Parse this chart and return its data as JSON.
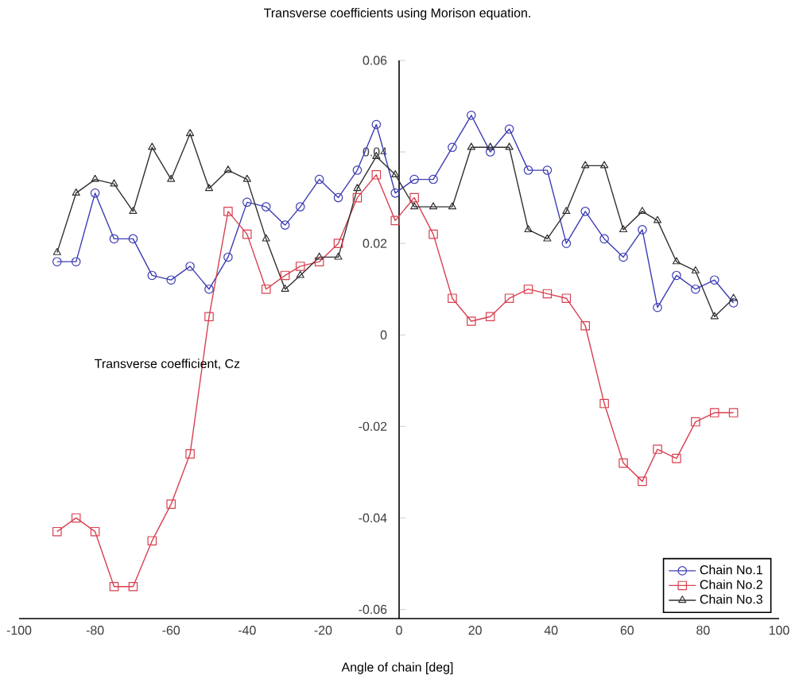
{
  "chart_data": {
    "type": "line",
    "title": "Transverse coefficients using Morison equation.",
    "xlabel": "Angle of chain [deg]",
    "ylabel": "Transverse coefficient, Cz",
    "x": [
      -90,
      -85,
      -80,
      -75,
      -70,
      -65,
      -60,
      -55,
      -50,
      -45,
      -40,
      -35,
      -30,
      -26,
      -21,
      -16,
      -11,
      -6,
      -1,
      4,
      9,
      14,
      19,
      24,
      29,
      34,
      39,
      44,
      49,
      54,
      59,
      64,
      68,
      73,
      78,
      83,
      88
    ],
    "series": [
      {
        "name": "Chain No.1",
        "color": "#3c3cb4",
        "marker": "circle",
        "values": [
          0.016,
          0.016,
          0.031,
          0.021,
          0.021,
          0.013,
          0.012,
          0.015,
          0.01,
          0.017,
          0.029,
          0.028,
          0.024,
          0.028,
          0.034,
          0.03,
          0.036,
          0.046,
          0.031,
          0.034,
          0.034,
          0.041,
          0.048,
          0.04,
          0.045,
          0.036,
          0.036,
          0.02,
          0.027,
          0.021,
          0.017,
          0.023,
          0.006,
          0.013,
          0.01,
          0.012,
          0.007
        ]
      },
      {
        "name": "Chain No.2",
        "color": "#d84050",
        "marker": "square",
        "values": [
          -0.043,
          -0.04,
          -0.043,
          -0.055,
          -0.055,
          -0.045,
          -0.037,
          -0.026,
          0.004,
          0.027,
          0.022,
          0.01,
          0.013,
          0.015,
          0.016,
          0.02,
          0.03,
          0.035,
          0.025,
          0.03,
          0.022,
          0.008,
          0.003,
          0.004,
          0.008,
          0.01,
          0.009,
          0.008,
          0.002,
          -0.015,
          -0.028,
          -0.032,
          -0.025,
          -0.027,
          -0.019,
          -0.017,
          -0.017
        ]
      },
      {
        "name": "Chain No.3",
        "color": "#303030",
        "marker": "triangle",
        "values": [
          0.018,
          0.031,
          0.034,
          0.033,
          0.027,
          0.041,
          0.034,
          0.044,
          0.032,
          0.036,
          0.034,
          0.021,
          0.01,
          0.013,
          0.017,
          0.017,
          0.032,
          0.039,
          0.035,
          0.028,
          0.028,
          0.028,
          0.041,
          0.041,
          0.041,
          0.023,
          0.021,
          0.027,
          0.037,
          0.037,
          0.023,
          0.027,
          0.025,
          0.016,
          0.014,
          0.004,
          0.008
        ]
      }
    ],
    "xlim": [
      -100,
      100
    ],
    "xticks": [
      -100,
      -80,
      -60,
      -40,
      -20,
      0,
      20,
      40,
      60,
      80,
      100
    ],
    "ylim": [
      -0.062,
      0.06
    ],
    "yticks": [
      -0.06,
      -0.04,
      -0.02,
      0,
      0.02,
      0.04,
      0.06
    ],
    "legend": "bottom right",
    "grid": false,
    "line_style": "solid"
  }
}
